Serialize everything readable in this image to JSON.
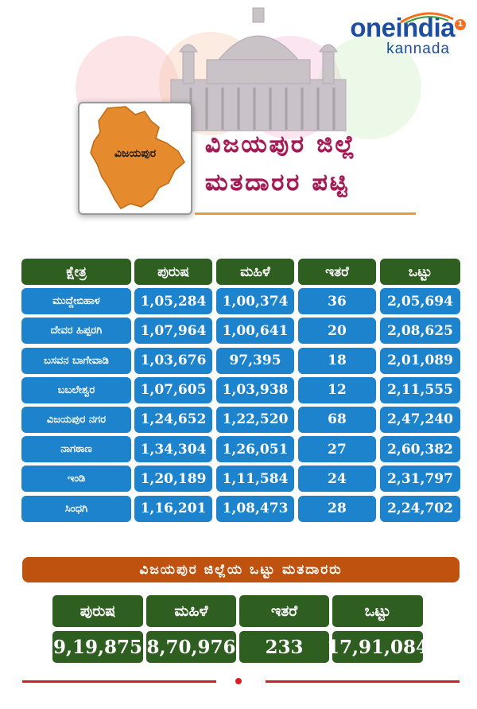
{
  "brand": {
    "name": "oneindia",
    "sub": "kannada",
    "badge": "1"
  },
  "map_label": "ವಿಜಯಪುರ",
  "title": {
    "line1": "ವಿಜಯಪುರ ಜಿಲ್ಲೆ",
    "line2": "ಮತದಾರರ ಪಟ್ಟಿ"
  },
  "colors": {
    "header_green": "#2e5e20",
    "cell_blue": "#1e83cd",
    "banner_orange": "#c0520f",
    "title_maroon": "#a11c55",
    "footer_red": "#d81f26"
  },
  "table": {
    "headers": [
      "ಕ್ಷೇತ್ರ",
      "ಪುರುಷ",
      "ಮಹಿಳೆ",
      "ಇತರೆ",
      "ಒಟ್ಟು"
    ],
    "rows": [
      [
        "ಮುದ್ದೇಬಿಹಾಳ",
        "1,05,284",
        "1,00,374",
        "36",
        "2,05,694"
      ],
      [
        "ದೇವರ ಹಿಪ್ಪರಗಿ",
        "1,07,964",
        "1,00,641",
        "20",
        "2,08,625"
      ],
      [
        "ಬಸವನ ಬಾಗೇವಾಡಿ",
        "1,03,676",
        "97,395",
        "18",
        "2,01,089"
      ],
      [
        "ಬಬಲೇಶ್ವರ",
        "1,07,605",
        "1,03,938",
        "12",
        "2,11,555"
      ],
      [
        "ವಿಜಯಪುರ ನಗರ",
        "1,24,652",
        "1,22,520",
        "68",
        "2,47,240"
      ],
      [
        "ನಾಗಠಾಣ",
        "1,34,304",
        "1,26,051",
        "27",
        "2,60,382"
      ],
      [
        "ಇಂಡಿ",
        "1,20,189",
        "1,11,584",
        "24",
        "2,31,797"
      ],
      [
        "ಸಿಂಧಗಿ",
        "1,16,201",
        "1,08,473",
        "28",
        "2,24,702"
      ]
    ]
  },
  "summary": {
    "title": "ವಿಜಯಪುರ ಜಿಲ್ಲೆಯ ಒಟ್ಟು ಮತದಾರರು",
    "headers": [
      "ಪುರುಷ",
      "ಮಹಿಳೆ",
      "ಇತರೆ",
      "ಒಟ್ಟು"
    ],
    "values": [
      "9,19,875",
      "8,70,976",
      "233",
      "17,91,084"
    ]
  }
}
